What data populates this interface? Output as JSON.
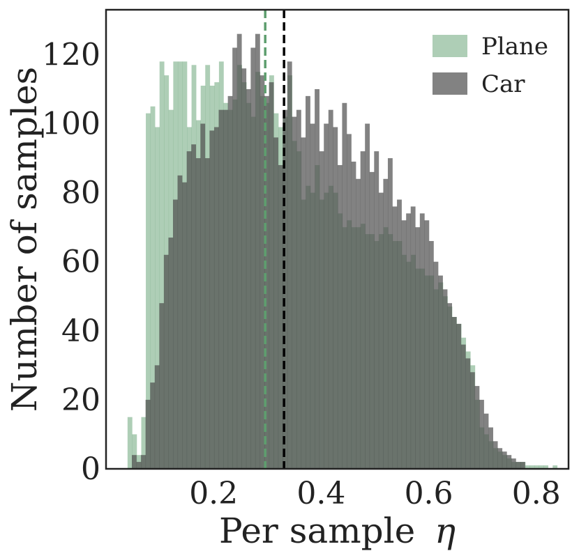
{
  "chart_data": {
    "type": "histogram",
    "title": "",
    "xlabel": "Per sample",
    "xlabel_symbol": "η",
    "ylabel": "Number of samples",
    "xlim": [
      0.0,
      0.86
    ],
    "ylim": [
      0,
      133
    ],
    "xticks": [
      0.2,
      0.4,
      0.6,
      0.8
    ],
    "xtick_labels": [
      "0.2",
      "0.4",
      "0.6",
      "0.8"
    ],
    "yticks": [
      0,
      20,
      40,
      60,
      80,
      100,
      120
    ],
    "ytick_labels": [
      "0",
      "20",
      "40",
      "60",
      "80",
      "100",
      "120"
    ],
    "grid": false,
    "legend_position": "top-right",
    "series": [
      {
        "name": "Plane",
        "color": "#5e9e6e",
        "opacity": 0.5,
        "bin_start": 0.04,
        "bin_width": 0.0085,
        "values": [
          15,
          10,
          4,
          15,
          103,
          105,
          99,
          118,
          114,
          104,
          118,
          118,
          118,
          99,
          117,
          101,
          111,
          117,
          111,
          112,
          118,
          106,
          104,
          107,
          117,
          112,
          106,
          102,
          115,
          108,
          106,
          114,
          103,
          99,
          102,
          114,
          95,
          92,
          78,
          82,
          80,
          88,
          78,
          80,
          82,
          80,
          74,
          70,
          72,
          70,
          70,
          71,
          68,
          68,
          66,
          68,
          70,
          68,
          66,
          66,
          62,
          60,
          62,
          58,
          58,
          56,
          56,
          52,
          54,
          50,
          47,
          44,
          42,
          38,
          34,
          30,
          20,
          12,
          10,
          8,
          6,
          5,
          4,
          3,
          2,
          2,
          2,
          1,
          1,
          1,
          1,
          1,
          0,
          1
        ]
      },
      {
        "name": "Car",
        "color": "#4d4d4d",
        "opacity": 0.7,
        "bin_start": 0.048,
        "bin_width": 0.0085,
        "values": [
          4,
          2,
          4,
          20,
          25,
          30,
          48,
          62,
          67,
          78,
          85,
          83,
          92,
          94,
          90,
          100,
          90,
          98,
          99,
          104,
          104,
          108,
          122,
          126,
          116,
          110,
          122,
          126,
          114,
          108,
          112,
          96,
          88,
          104,
          118,
          102,
          104,
          96,
          108,
          100,
          110,
          92,
          100,
          104,
          99,
          88,
          106,
          97,
          89,
          84,
          92,
          100,
          86,
          92,
          80,
          84,
          90,
          76,
          78,
          72,
          74,
          76,
          70,
          74,
          72,
          66,
          60,
          56,
          52,
          48,
          44,
          42,
          36,
          32,
          28,
          24,
          20,
          16,
          12,
          8,
          6,
          5,
          4,
          3,
          2,
          2
        ]
      }
    ],
    "mean_lines": [
      {
        "name": "Plane mean",
        "x": 0.296,
        "color": "#5e9e6e",
        "style": "dashed"
      },
      {
        "name": "Car mean",
        "x": 0.331,
        "color": "#000000",
        "style": "dashed"
      }
    ]
  }
}
